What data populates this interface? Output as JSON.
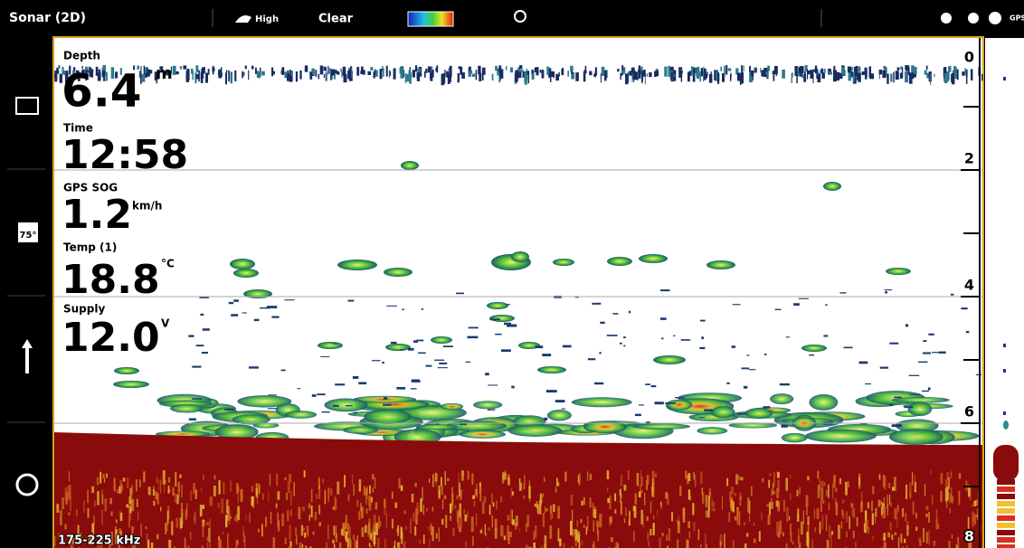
{
  "header": {
    "title": "Sonar (2D)",
    "sensitivity": "High",
    "clarity": "Clear",
    "gps": "GPS"
  },
  "sidebar": {
    "temp_icon": "75°"
  },
  "readouts": [
    {
      "label": "Depth",
      "value": "6.4",
      "unit": "m"
    },
    {
      "label": "Time",
      "value": "12:58"
    },
    {
      "label": "GPS SOG",
      "value": "1.2",
      "unit": "km/h"
    },
    {
      "label": "Temp (1)",
      "value": "18.8",
      "unit": "°C"
    },
    {
      "label": "Supply",
      "value": "12.0",
      "unit": "V"
    }
  ],
  "depth_scale": [
    "0",
    "2",
    "4",
    "6",
    "8"
  ],
  "frequency": "175-225 kHz"
}
